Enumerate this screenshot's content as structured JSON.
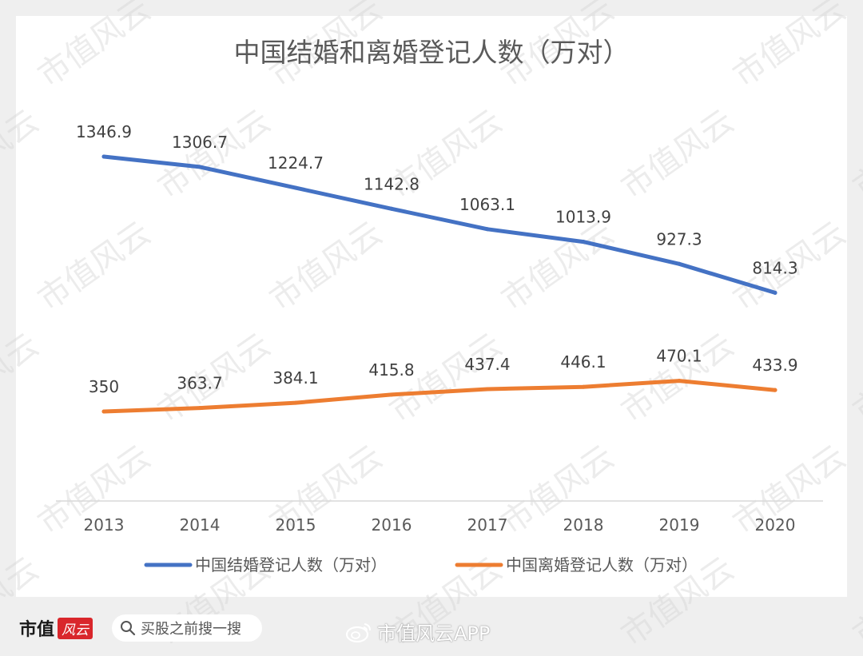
{
  "chart_data": {
    "type": "line",
    "title": "中国结婚和离婚登记人数（万对）",
    "categories": [
      "2013",
      "2014",
      "2015",
      "2016",
      "2017",
      "2018",
      "2019",
      "2020"
    ],
    "ylim": [
      0,
      1600
    ],
    "grid": false,
    "legend_position": "bottom",
    "series": [
      {
        "name": "中国结婚登记人数（万对）",
        "color": "#4472c4",
        "values": [
          1346.9,
          1306.7,
          1224.7,
          1142.8,
          1063.1,
          1013.9,
          927.3,
          814.3
        ],
        "labels": [
          "1346.9",
          "1306.7",
          "1224.7",
          "1142.8",
          "1063.1",
          "1013.9",
          "927.3",
          "814.3"
        ]
      },
      {
        "name": "中国离婚登记人数（万对）",
        "color": "#ed7d31",
        "values": [
          350,
          363.7,
          384.1,
          415.8,
          437.4,
          446.1,
          470.1,
          433.9
        ],
        "labels": [
          "350",
          "363.7",
          "384.1",
          "415.8",
          "437.4",
          "446.1",
          "470.1",
          "433.9"
        ]
      }
    ]
  },
  "watermark": "市值风云",
  "footer": {
    "brand": "市值",
    "brand_logo": "风云",
    "search_placeholder": "买股之前搜一搜",
    "search_icon": "search-icon",
    "credit": "市值风云APP",
    "credit_icon": "weibo-icon"
  }
}
